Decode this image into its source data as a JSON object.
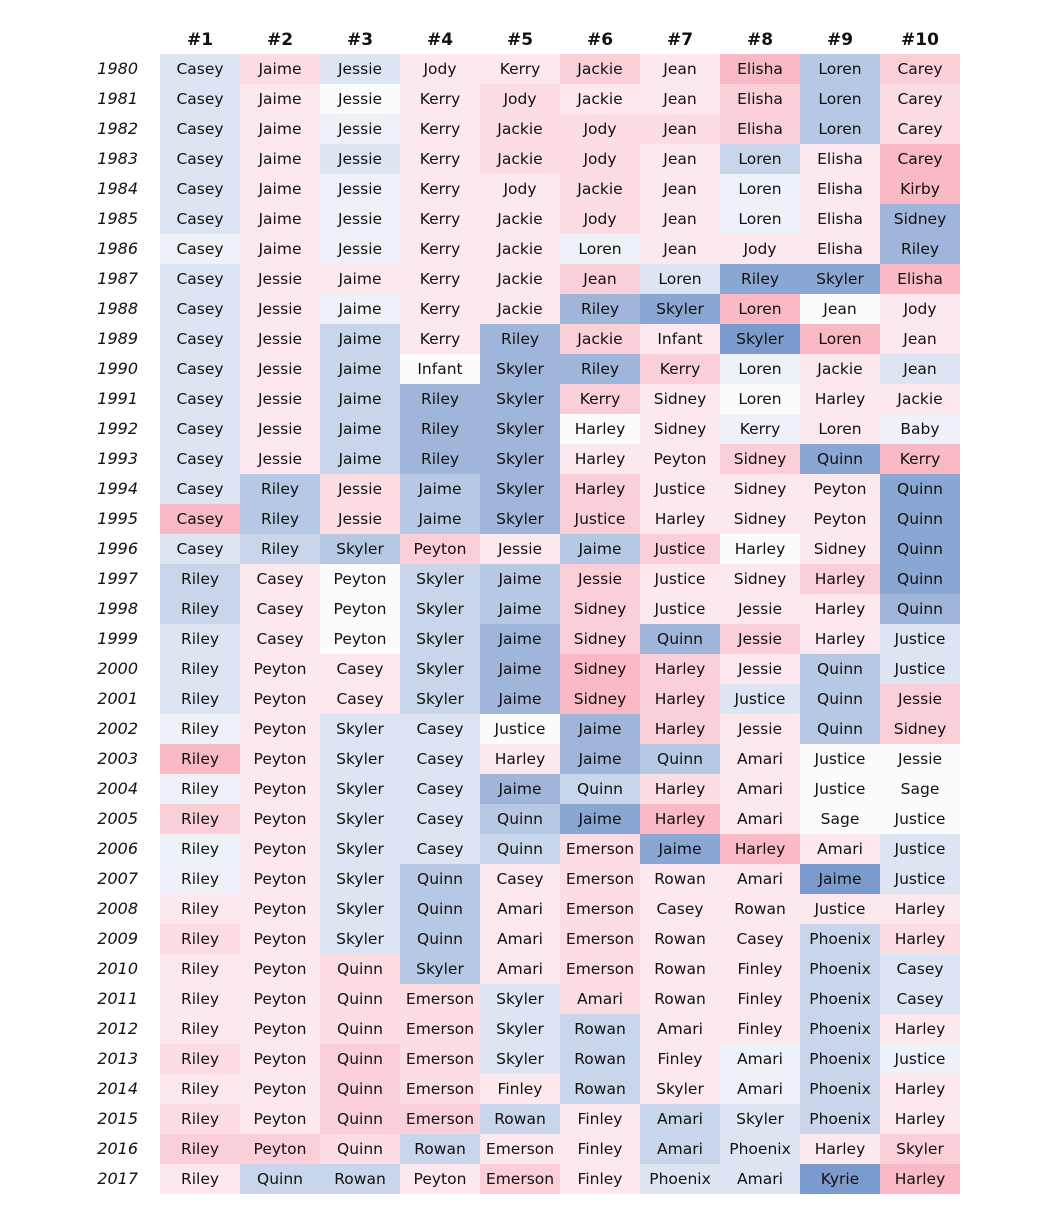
{
  "chart_data": {
    "type": "heatmap",
    "ranks": [
      "#1",
      "#2",
      "#3",
      "#4",
      "#5",
      "#6",
      "#7",
      "#8",
      "#9",
      "#10"
    ],
    "years": [
      "1980",
      "1981",
      "1982",
      "1983",
      "1984",
      "1985",
      "1986",
      "1987",
      "1988",
      "1989",
      "1990",
      "1991",
      "1992",
      "1993",
      "1994",
      "1995",
      "1996",
      "1997",
      "1998",
      "1999",
      "2000",
      "2001",
      "2002",
      "2003",
      "2004",
      "2005",
      "2006",
      "2007",
      "2008",
      "2009",
      "2010",
      "2011",
      "2012",
      "2013",
      "2014",
      "2015",
      "2016",
      "2017"
    ],
    "names": [
      [
        "Casey",
        "Jaime",
        "Jessie",
        "Jody",
        "Kerry",
        "Jackie",
        "Jean",
        "Elisha",
        "Loren",
        "Carey"
      ],
      [
        "Casey",
        "Jaime",
        "Jessie",
        "Kerry",
        "Jody",
        "Jackie",
        "Jean",
        "Elisha",
        "Loren",
        "Carey"
      ],
      [
        "Casey",
        "Jaime",
        "Jessie",
        "Kerry",
        "Jackie",
        "Jody",
        "Jean",
        "Elisha",
        "Loren",
        "Carey"
      ],
      [
        "Casey",
        "Jaime",
        "Jessie",
        "Kerry",
        "Jackie",
        "Jody",
        "Jean",
        "Loren",
        "Elisha",
        "Carey"
      ],
      [
        "Casey",
        "Jaime",
        "Jessie",
        "Kerry",
        "Jody",
        "Jackie",
        "Jean",
        "Loren",
        "Elisha",
        "Kirby"
      ],
      [
        "Casey",
        "Jaime",
        "Jessie",
        "Kerry",
        "Jackie",
        "Jody",
        "Jean",
        "Loren",
        "Elisha",
        "Sidney"
      ],
      [
        "Casey",
        "Jaime",
        "Jessie",
        "Kerry",
        "Jackie",
        "Loren",
        "Jean",
        "Jody",
        "Elisha",
        "Riley"
      ],
      [
        "Casey",
        "Jessie",
        "Jaime",
        "Kerry",
        "Jackie",
        "Jean",
        "Loren",
        "Riley",
        "Skyler",
        "Elisha"
      ],
      [
        "Casey",
        "Jessie",
        "Jaime",
        "Kerry",
        "Jackie",
        "Riley",
        "Skyler",
        "Loren",
        "Jean",
        "Jody"
      ],
      [
        "Casey",
        "Jessie",
        "Jaime",
        "Kerry",
        "Riley",
        "Jackie",
        "Infant",
        "Skyler",
        "Loren",
        "Jean"
      ],
      [
        "Casey",
        "Jessie",
        "Jaime",
        "Infant",
        "Skyler",
        "Riley",
        "Kerry",
        "Loren",
        "Jackie",
        "Jean"
      ],
      [
        "Casey",
        "Jessie",
        "Jaime",
        "Riley",
        "Skyler",
        "Kerry",
        "Sidney",
        "Loren",
        "Harley",
        "Jackie"
      ],
      [
        "Casey",
        "Jessie",
        "Jaime",
        "Riley",
        "Skyler",
        "Harley",
        "Sidney",
        "Kerry",
        "Loren",
        "Baby"
      ],
      [
        "Casey",
        "Jessie",
        "Jaime",
        "Riley",
        "Skyler",
        "Harley",
        "Peyton",
        "Sidney",
        "Quinn",
        "Kerry"
      ],
      [
        "Casey",
        "Riley",
        "Jessie",
        "Jaime",
        "Skyler",
        "Harley",
        "Justice",
        "Sidney",
        "Peyton",
        "Quinn"
      ],
      [
        "Casey",
        "Riley",
        "Jessie",
        "Jaime",
        "Skyler",
        "Justice",
        "Harley",
        "Sidney",
        "Peyton",
        "Quinn"
      ],
      [
        "Casey",
        "Riley",
        "Skyler",
        "Peyton",
        "Jessie",
        "Jaime",
        "Justice",
        "Harley",
        "Sidney",
        "Quinn"
      ],
      [
        "Riley",
        "Casey",
        "Peyton",
        "Skyler",
        "Jaime",
        "Jessie",
        "Justice",
        "Sidney",
        "Harley",
        "Quinn"
      ],
      [
        "Riley",
        "Casey",
        "Peyton",
        "Skyler",
        "Jaime",
        "Sidney",
        "Justice",
        "Jessie",
        "Harley",
        "Quinn"
      ],
      [
        "Riley",
        "Casey",
        "Peyton",
        "Skyler",
        "Jaime",
        "Sidney",
        "Quinn",
        "Jessie",
        "Harley",
        "Justice"
      ],
      [
        "Riley",
        "Peyton",
        "Casey",
        "Skyler",
        "Jaime",
        "Sidney",
        "Harley",
        "Jessie",
        "Quinn",
        "Justice"
      ],
      [
        "Riley",
        "Peyton",
        "Casey",
        "Skyler",
        "Jaime",
        "Sidney",
        "Harley",
        "Justice",
        "Quinn",
        "Jessie"
      ],
      [
        "Riley",
        "Peyton",
        "Skyler",
        "Casey",
        "Justice",
        "Jaime",
        "Harley",
        "Jessie",
        "Quinn",
        "Sidney"
      ],
      [
        "Riley",
        "Peyton",
        "Skyler",
        "Casey",
        "Harley",
        "Jaime",
        "Quinn",
        "Amari",
        "Justice",
        "Jessie"
      ],
      [
        "Riley",
        "Peyton",
        "Skyler",
        "Casey",
        "Jaime",
        "Quinn",
        "Harley",
        "Amari",
        "Justice",
        "Sage"
      ],
      [
        "Riley",
        "Peyton",
        "Skyler",
        "Casey",
        "Quinn",
        "Jaime",
        "Harley",
        "Amari",
        "Sage",
        "Justice"
      ],
      [
        "Riley",
        "Peyton",
        "Skyler",
        "Casey",
        "Quinn",
        "Emerson",
        "Jaime",
        "Harley",
        "Amari",
        "Justice"
      ],
      [
        "Riley",
        "Peyton",
        "Skyler",
        "Quinn",
        "Casey",
        "Emerson",
        "Rowan",
        "Amari",
        "Jaime",
        "Justice"
      ],
      [
        "Riley",
        "Peyton",
        "Skyler",
        "Quinn",
        "Amari",
        "Emerson",
        "Casey",
        "Rowan",
        "Justice",
        "Harley"
      ],
      [
        "Riley",
        "Peyton",
        "Skyler",
        "Quinn",
        "Amari",
        "Emerson",
        "Rowan",
        "Casey",
        "Phoenix",
        "Harley"
      ],
      [
        "Riley",
        "Peyton",
        "Quinn",
        "Skyler",
        "Amari",
        "Emerson",
        "Rowan",
        "Finley",
        "Phoenix",
        "Casey"
      ],
      [
        "Riley",
        "Peyton",
        "Quinn",
        "Emerson",
        "Skyler",
        "Amari",
        "Rowan",
        "Finley",
        "Phoenix",
        "Casey"
      ],
      [
        "Riley",
        "Peyton",
        "Quinn",
        "Emerson",
        "Skyler",
        "Rowan",
        "Amari",
        "Finley",
        "Phoenix",
        "Harley"
      ],
      [
        "Riley",
        "Peyton",
        "Quinn",
        "Emerson",
        "Skyler",
        "Rowan",
        "Finley",
        "Amari",
        "Phoenix",
        "Justice"
      ],
      [
        "Riley",
        "Peyton",
        "Quinn",
        "Emerson",
        "Finley",
        "Rowan",
        "Skyler",
        "Amari",
        "Phoenix",
        "Harley"
      ],
      [
        "Riley",
        "Peyton",
        "Quinn",
        "Emerson",
        "Rowan",
        "Finley",
        "Amari",
        "Skyler",
        "Phoenix",
        "Harley"
      ],
      [
        "Riley",
        "Peyton",
        "Quinn",
        "Rowan",
        "Emerson",
        "Finley",
        "Amari",
        "Phoenix",
        "Harley",
        "Skyler"
      ],
      [
        "Riley",
        "Quinn",
        "Rowan",
        "Peyton",
        "Emerson",
        "Finley",
        "Phoenix",
        "Amari",
        "Kyrie",
        "Harley"
      ]
    ],
    "colors": [
      [
        "b2",
        "r2",
        "b2",
        "r1",
        "r1",
        "r3",
        "r1",
        "r4",
        "b4",
        "r3"
      ],
      [
        "b2",
        "r1",
        "w",
        "r1",
        "r2",
        "r1",
        "r1",
        "r3",
        "b4",
        "r2"
      ],
      [
        "b2",
        "r1",
        "b1",
        "r1",
        "r2",
        "r2",
        "r2",
        "r3",
        "b4",
        "r2"
      ],
      [
        "b2",
        "r1",
        "b2",
        "r1",
        "r2",
        "r2",
        "r1",
        "b3",
        "r1",
        "r4"
      ],
      [
        "b2",
        "r1",
        "b1",
        "r1",
        "r1",
        "r2",
        "r1",
        "b1",
        "r1",
        "r4"
      ],
      [
        "b2",
        "r1",
        "b1",
        "r1",
        "r1",
        "r2",
        "r1",
        "b1",
        "r1",
        "b5"
      ],
      [
        "b1",
        "r1",
        "b1",
        "r1",
        "r1",
        "b1",
        "r1",
        "r1",
        "r1",
        "b5"
      ],
      [
        "b2",
        "r1",
        "r1",
        "r1",
        "r1",
        "r3",
        "b2",
        "b6",
        "b6",
        "r4"
      ],
      [
        "b2",
        "r1",
        "b1",
        "r1",
        "r1",
        "b5",
        "b6",
        "r4",
        "w",
        "r1"
      ],
      [
        "b2",
        "r1",
        "b3",
        "r1",
        "b5",
        "r3",
        "r1",
        "b7",
        "r4",
        "r1"
      ],
      [
        "b2",
        "r1",
        "b3",
        "w",
        "b5",
        "b5",
        "r3",
        "b1",
        "r1",
        "b2"
      ],
      [
        "b2",
        "r1",
        "b3",
        "b5",
        "b5",
        "r3",
        "r1",
        "w",
        "r1",
        "r1"
      ],
      [
        "b2",
        "r1",
        "b3",
        "b5",
        "b5",
        "w",
        "r1",
        "b1",
        "r1",
        "b1"
      ],
      [
        "b2",
        "r1",
        "b3",
        "b5",
        "b5",
        "r1",
        "r1",
        "r3",
        "b6",
        "r4"
      ],
      [
        "b2",
        "b4",
        "r2",
        "b4",
        "b5",
        "r3",
        "r1",
        "r1",
        "r1",
        "b6"
      ],
      [
        "r4",
        "b4",
        "r2",
        "b4",
        "b5",
        "r3",
        "r1",
        "r1",
        "r1",
        "b6"
      ],
      [
        "b2",
        "b3",
        "b4",
        "r3",
        "r1",
        "b4",
        "r3",
        "w",
        "r1",
        "b6"
      ],
      [
        "b3",
        "r1",
        "w",
        "b3",
        "b4",
        "r3",
        "r1",
        "r1",
        "r3",
        "b6"
      ],
      [
        "b3",
        "r1",
        "w",
        "b3",
        "b4",
        "r3",
        "r1",
        "r1",
        "r1",
        "b5"
      ],
      [
        "b2",
        "r1",
        "w",
        "b3",
        "b5",
        "r3",
        "b5",
        "r3",
        "r1",
        "b2"
      ],
      [
        "b2",
        "r1",
        "r1",
        "b3",
        "b5",
        "r4",
        "r3",
        "r1",
        "b4",
        "b2"
      ],
      [
        "b2",
        "r1",
        "r1",
        "b3",
        "b5",
        "r4",
        "r3",
        "b2",
        "b4",
        "r3"
      ],
      [
        "b1",
        "r1",
        "b2",
        "b2",
        "w",
        "b5",
        "r3",
        "r1",
        "b4",
        "r3"
      ],
      [
        "r4",
        "r1",
        "b2",
        "b2",
        "r1",
        "b5",
        "b4",
        "r1",
        "w",
        "w"
      ],
      [
        "b1",
        "r1",
        "b2",
        "b2",
        "b5",
        "b3",
        "r2",
        "r1",
        "w",
        "w"
      ],
      [
        "r3",
        "r1",
        "b2",
        "b2",
        "b4",
        "b6",
        "r4",
        "r1",
        "w",
        "w"
      ],
      [
        "b1",
        "r1",
        "b2",
        "b2",
        "b3",
        "r2",
        "b6",
        "r4",
        "r1",
        "b2"
      ],
      [
        "b1",
        "r1",
        "b2",
        "b4",
        "r1",
        "r2",
        "r1",
        "r1",
        "b7",
        "b2"
      ],
      [
        "r1",
        "r1",
        "b2",
        "b4",
        "r1",
        "r2",
        "r1",
        "r1",
        "r1",
        "r1"
      ],
      [
        "r2",
        "r1",
        "b2",
        "b4",
        "r1",
        "r2",
        "r1",
        "r1",
        "b3",
        "r2"
      ],
      [
        "r1",
        "r1",
        "r2",
        "b4",
        "r1",
        "r2",
        "r1",
        "r1",
        "b3",
        "b2"
      ],
      [
        "r1",
        "r1",
        "r2",
        "r2",
        "b2",
        "r2",
        "r1",
        "r1",
        "b3",
        "b2"
      ],
      [
        "r1",
        "r1",
        "r2",
        "r2",
        "b2",
        "b3",
        "r1",
        "r1",
        "b3",
        "r1"
      ],
      [
        "r2",
        "r1",
        "r3",
        "r2",
        "b2",
        "b3",
        "r1",
        "b1",
        "b3",
        "b1"
      ],
      [
        "r1",
        "r1",
        "r3",
        "r2",
        "r1",
        "b3",
        "r1",
        "b1",
        "b3",
        "r1"
      ],
      [
        "r2",
        "r1",
        "r3",
        "r3",
        "b3",
        "r1",
        "b3",
        "b2",
        "b3",
        "r1"
      ],
      [
        "r3",
        "r3",
        "r2",
        "b3",
        "r1",
        "r1",
        "b3",
        "b2",
        "r1",
        "r3"
      ],
      [
        "r1",
        "b3",
        "b3",
        "r1",
        "r3",
        "r1",
        "b2",
        "b2",
        "b7",
        "r4"
      ]
    ]
  },
  "colors": {
    "w": "#fdfcfd",
    "b1": "#eef1f8",
    "b2": "#dde5f2",
    "b3": "#c8d5ea",
    "b4": "#b6c8e4",
    "b5": "#9fb6da",
    "b6": "#8aa7d4",
    "b7": "#7b9bce",
    "r1": "#fde9ed",
    "r2": "#fcdde3",
    "r3": "#fbcfd8",
    "r4": "#f9b9c5"
  }
}
